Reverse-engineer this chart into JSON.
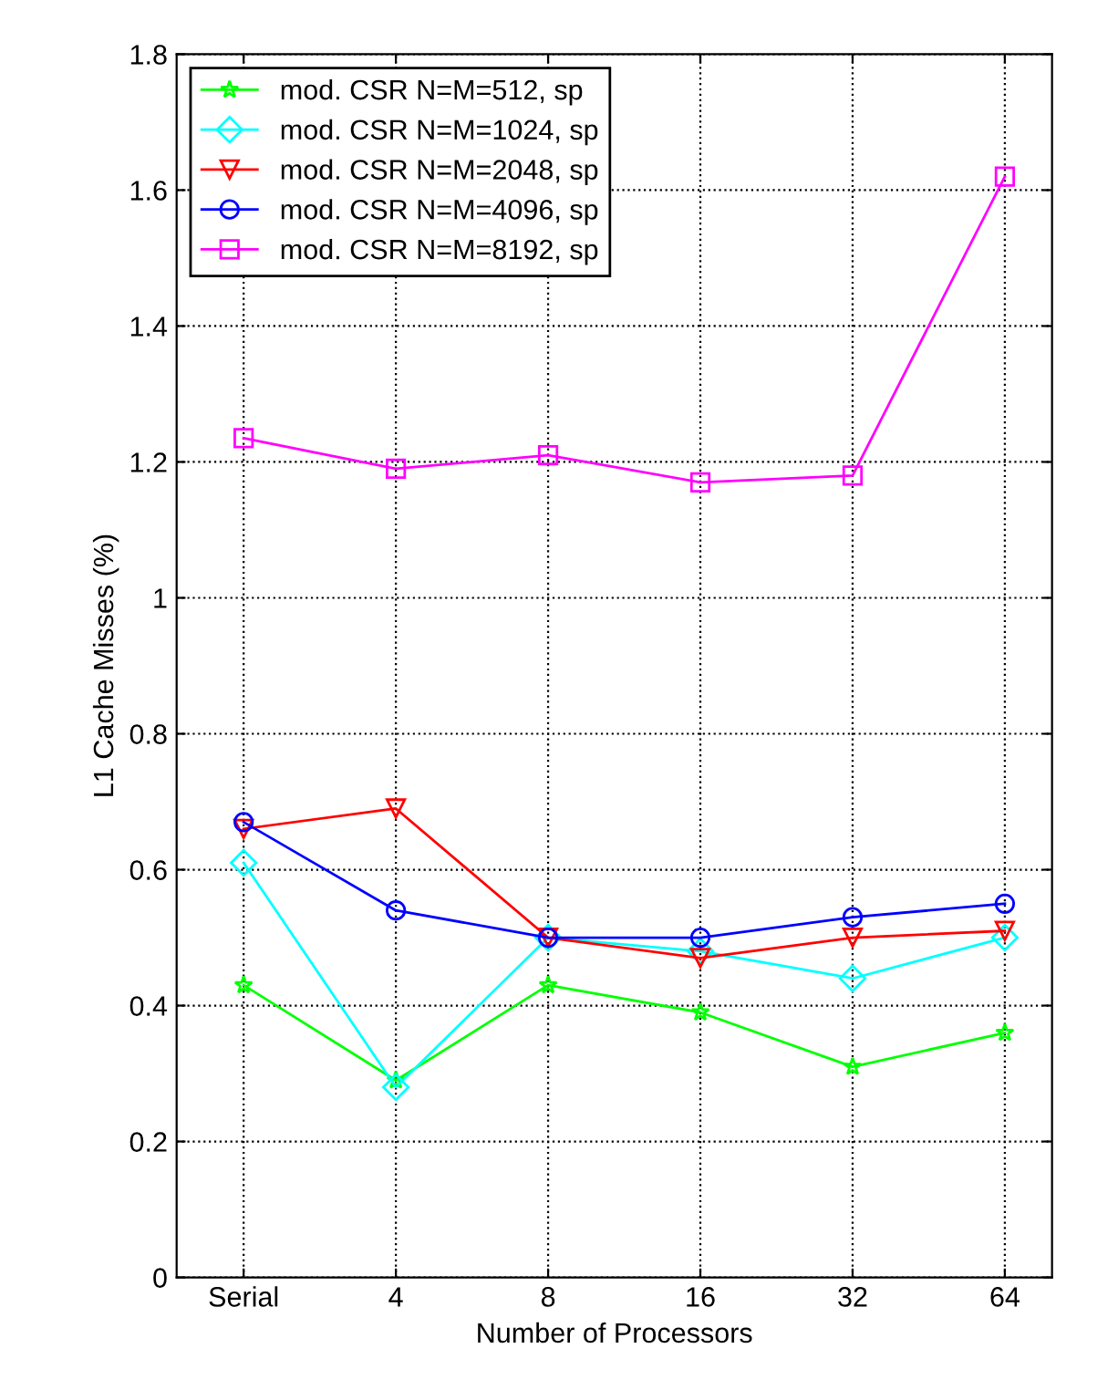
{
  "chart_data": {
    "type": "line",
    "xlabel": "Number of Processors",
    "ylabel": "L1 Cache Misses (%)",
    "categories": [
      "Serial",
      "4",
      "8",
      "16",
      "32",
      "64"
    ],
    "series": [
      {
        "name": "mod. CSR N=M=512, sp",
        "color": "#00ff00",
        "marker": "star",
        "values": [
          0.43,
          0.29,
          0.43,
          0.39,
          0.31,
          0.36
        ]
      },
      {
        "name": "mod. CSR N=M=1024, sp",
        "color": "#00ffff",
        "marker": "diamond",
        "values": [
          0.61,
          0.28,
          0.5,
          0.48,
          0.44,
          0.5
        ]
      },
      {
        "name": "mod. CSR N=M=2048, sp",
        "color": "#ff0000",
        "marker": "triangle",
        "values": [
          0.66,
          0.69,
          0.5,
          0.47,
          0.5,
          0.51
        ]
      },
      {
        "name": "mod. CSR N=M=4096, sp",
        "color": "#0000ff",
        "marker": "circle",
        "values": [
          0.67,
          0.54,
          0.5,
          0.5,
          0.53,
          0.55
        ]
      },
      {
        "name": "mod. CSR N=M=8192, sp",
        "color": "#ff00ff",
        "marker": "square",
        "values": [
          1.235,
          1.19,
          1.21,
          1.17,
          1.18,
          1.62
        ]
      }
    ],
    "ylim": [
      0,
      1.8
    ],
    "yticks": [
      0,
      0.2,
      0.4,
      0.6,
      0.8,
      1,
      1.2,
      1.4,
      1.6,
      1.8
    ],
    "grid": true,
    "legend": "top left",
    "line_style": "solid"
  }
}
